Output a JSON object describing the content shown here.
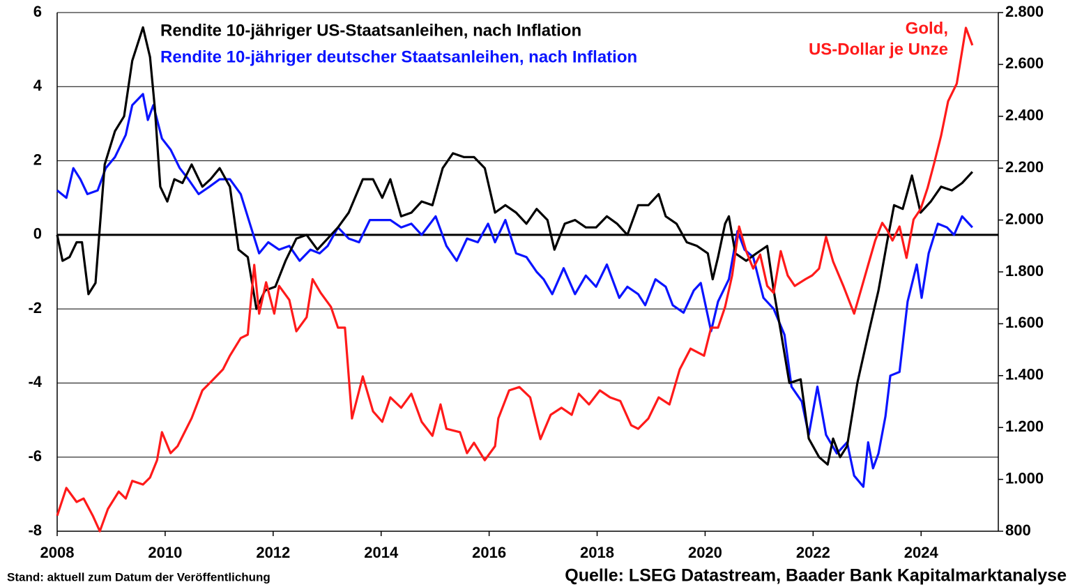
{
  "chart_data": {
    "type": "line",
    "xlim": [
      2008,
      2025.43
    ],
    "xticks": [
      2008,
      2010,
      2012,
      2014,
      2016,
      2018,
      2020,
      2022,
      2024
    ],
    "ylim": [
      -8,
      6
    ],
    "yticks": [
      -8,
      -6,
      -4,
      -2,
      0,
      2,
      4,
      6
    ],
    "y2lim": [
      800,
      2800
    ],
    "y2ticks": [
      800,
      {
        "value": 1000,
        "label": "1.000"
      },
      {
        "value": 1200,
        "label": "1.200"
      },
      {
        "value": 1400,
        "label": "1.400"
      },
      {
        "value": 1600,
        "label": "1.600"
      },
      {
        "value": 1800,
        "label": "1.800"
      },
      {
        "value": 2000,
        "label": "2.000"
      },
      {
        "value": 2200,
        "label": "2.200"
      },
      {
        "value": 2400,
        "label": "2.400"
      },
      {
        "value": 2600,
        "label": "2.600"
      },
      {
        "value": 2800,
        "label": "2.800"
      }
    ],
    "grid": true,
    "footer_left": "Stand: aktuell zum Datum der Veröffentlichung",
    "footer_right": "Quelle: LSEG Datastream, Baader Bank Kapitalmarktanalyse",
    "series": [
      {
        "name": "Rendite 10-jähriger US-Staatsanleihen, nach Inflation",
        "color": "#000000",
        "x": [
          2008.0,
          2008.1,
          2008.23,
          2008.36,
          2008.46,
          2008.58,
          2008.71,
          2008.88,
          2009.07,
          2009.24,
          2009.39,
          2009.59,
          2009.72,
          2009.81,
          2009.91,
          2010.04,
          2010.17,
          2010.32,
          2010.49,
          2010.69,
          2010.84,
          2011.01,
          2011.2,
          2011.36,
          2011.53,
          2011.69,
          2011.85,
          2012.04,
          2012.23,
          2012.43,
          2012.62,
          2012.82,
          2013.01,
          2013.2,
          2013.4,
          2013.66,
          2013.85,
          2014.02,
          2014.17,
          2014.37,
          2014.56,
          2014.75,
          2014.95,
          2015.14,
          2015.33,
          2015.53,
          2015.72,
          2015.92,
          2016.11,
          2016.3,
          2016.5,
          2016.69,
          2016.88,
          2017.08,
          2017.21,
          2017.4,
          2017.59,
          2017.79,
          2017.98,
          2018.18,
          2018.37,
          2018.56,
          2018.76,
          2018.95,
          2019.14,
          2019.27,
          2019.47,
          2019.66,
          2019.85,
          2020.05,
          2020.14,
          2020.24,
          2020.37,
          2020.44,
          2020.56,
          2020.76,
          2020.95,
          2021.15,
          2021.27,
          2021.4,
          2021.56,
          2021.77,
          2021.92,
          2022.11,
          2022.27,
          2022.37,
          2022.5,
          2022.63,
          2022.82,
          2023.02,
          2023.21,
          2023.37,
          2023.5,
          2023.66,
          2023.83,
          2023.99,
          2024.18,
          2024.37,
          2024.57,
          2024.76,
          2024.95
        ],
        "values": [
          0,
          -0.7,
          -0.6,
          -0.2,
          -0.2,
          -1.6,
          -1.3,
          1.9,
          2.8,
          3.2,
          4.7,
          5.6,
          4.8,
          3.4,
          1.3,
          0.9,
          1.5,
          1.4,
          1.9,
          1.3,
          1.5,
          1.8,
          1.3,
          -0.4,
          -0.6,
          -2.0,
          -1.5,
          -1.4,
          -0.7,
          -0.1,
          0.0,
          -0.4,
          -0.1,
          0.2,
          0.6,
          1.5,
          1.5,
          1.0,
          1.5,
          0.5,
          0.6,
          0.9,
          0.8,
          1.8,
          2.2,
          2.1,
          2.1,
          1.8,
          0.6,
          0.8,
          0.6,
          0.3,
          0.7,
          0.4,
          -0.4,
          0.3,
          0.4,
          0.2,
          0.2,
          0.5,
          0.3,
          0.0,
          0.8,
          0.8,
          1.1,
          0.5,
          0.3,
          -0.2,
          -0.3,
          -0.5,
          -1.2,
          -0.6,
          0.3,
          0.5,
          -0.5,
          -0.7,
          -0.5,
          -0.3,
          -1.5,
          -2.6,
          -4.0,
          -3.9,
          -5.5,
          -6.0,
          -6.2,
          -5.5,
          -6.0,
          -5.7,
          -4.0,
          -2.7,
          -1.5,
          -0.2,
          0.8,
          0.7,
          1.6,
          0.6,
          0.9,
          1.3,
          1.2,
          1.4,
          1.7
        ]
      },
      {
        "name": "Rendite 10-jähriger deutscher Staatsanleihen, nach Inflation",
        "color": "#0a14ff",
        "x": [
          2008.0,
          2008.17,
          2008.3,
          2008.43,
          2008.56,
          2008.75,
          2008.9,
          2009.07,
          2009.27,
          2009.39,
          2009.59,
          2009.68,
          2009.78,
          2009.94,
          2010.1,
          2010.27,
          2010.43,
          2010.62,
          2010.82,
          2011.01,
          2011.2,
          2011.4,
          2011.59,
          2011.74,
          2011.91,
          2012.11,
          2012.3,
          2012.49,
          2012.69,
          2012.86,
          2013.01,
          2013.2,
          2013.4,
          2013.59,
          2013.79,
          2013.98,
          2014.17,
          2014.37,
          2014.56,
          2014.75,
          2015.01,
          2015.21,
          2015.4,
          2015.59,
          2015.79,
          2015.98,
          2016.11,
          2016.3,
          2016.5,
          2016.69,
          2016.88,
          2017.01,
          2017.17,
          2017.38,
          2017.59,
          2017.79,
          2017.98,
          2018.18,
          2018.41,
          2018.56,
          2018.76,
          2018.89,
          2019.08,
          2019.27,
          2019.4,
          2019.6,
          2019.79,
          2019.92,
          2020.11,
          2020.24,
          2020.44,
          2020.6,
          2020.73,
          2020.89,
          2021.08,
          2021.27,
          2021.47,
          2021.6,
          2021.79,
          2021.92,
          2022.08,
          2022.24,
          2022.44,
          2022.63,
          2022.76,
          2022.93,
          2023.02,
          2023.11,
          2023.21,
          2023.34,
          2023.43,
          2023.6,
          2023.75,
          2023.92,
          2024.01,
          2024.14,
          2024.31,
          2024.48,
          2024.61,
          2024.76,
          2024.95
        ],
        "values": [
          1.2,
          1.0,
          1.8,
          1.5,
          1.1,
          1.2,
          1.8,
          2.1,
          2.7,
          3.5,
          3.8,
          3.1,
          3.5,
          2.6,
          2.3,
          1.8,
          1.5,
          1.1,
          1.3,
          1.5,
          1.5,
          1.1,
          0.2,
          -0.5,
          -0.2,
          -0.4,
          -0.3,
          -0.7,
          -0.4,
          -0.5,
          -0.3,
          0.2,
          -0.1,
          -0.2,
          0.4,
          0.4,
          0.4,
          0.2,
          0.3,
          0.0,
          0.5,
          -0.3,
          -0.7,
          -0.1,
          -0.2,
          0.3,
          -0.2,
          0.4,
          -0.5,
          -0.6,
          -1.0,
          -1.2,
          -1.6,
          -0.9,
          -1.6,
          -1.1,
          -1.4,
          -0.8,
          -1.7,
          -1.4,
          -1.6,
          -1.9,
          -1.2,
          -1.4,
          -1.9,
          -2.1,
          -1.5,
          -1.3,
          -2.6,
          -1.8,
          -1.2,
          0.1,
          -0.4,
          -0.6,
          -1.7,
          -2.0,
          -2.7,
          -4.1,
          -4.5,
          -5.4,
          -4.1,
          -5.4,
          -5.9,
          -5.6,
          -6.5,
          -6.8,
          -5.6,
          -6.3,
          -5.9,
          -4.9,
          -3.8,
          -3.7,
          -1.8,
          -0.8,
          -1.7,
          -0.5,
          0.3,
          0.2,
          0.0,
          0.5,
          0.2
        ]
      },
      {
        "name": [
          "Gold,",
          "US-Dollar je Unze"
        ],
        "color": "#ff1a1a",
        "axis": "y2",
        "x": [
          2008.0,
          2008.17,
          2008.36,
          2008.49,
          2008.66,
          2008.79,
          2008.94,
          2009.14,
          2009.27,
          2009.39,
          2009.59,
          2009.72,
          2009.85,
          2009.94,
          2010.1,
          2010.23,
          2010.36,
          2010.49,
          2010.69,
          2010.88,
          2011.07,
          2011.2,
          2011.4,
          2011.53,
          2011.65,
          2011.74,
          2011.87,
          2012.02,
          2012.11,
          2012.3,
          2012.43,
          2012.62,
          2012.73,
          2012.88,
          2013.07,
          2013.2,
          2013.33,
          2013.46,
          2013.66,
          2013.85,
          2014.02,
          2014.17,
          2014.37,
          2014.56,
          2014.75,
          2014.95,
          2015.1,
          2015.21,
          2015.46,
          2015.59,
          2015.72,
          2015.92,
          2016.11,
          2016.17,
          2016.37,
          2016.56,
          2016.76,
          2016.95,
          2017.14,
          2017.34,
          2017.53,
          2017.66,
          2017.85,
          2018.05,
          2018.24,
          2018.43,
          2018.63,
          2018.76,
          2018.95,
          2019.14,
          2019.34,
          2019.53,
          2019.73,
          2019.85,
          2019.98,
          2020.11,
          2020.24,
          2020.37,
          2020.5,
          2020.63,
          2020.76,
          2020.89,
          2021.02,
          2021.15,
          2021.27,
          2021.4,
          2021.53,
          2021.66,
          2021.86,
          2021.98,
          2022.11,
          2022.24,
          2022.37,
          2022.56,
          2022.76,
          2022.89,
          2023.02,
          2023.15,
          2023.28,
          2023.37,
          2023.47,
          2023.6,
          2023.73,
          2023.86,
          2023.99,
          2024.12,
          2024.24,
          2024.37,
          2024.5,
          2024.66,
          2024.83,
          2024.95
        ],
        "values": [
          860,
          967,
          913,
          926,
          860,
          800,
          886,
          953,
          926,
          994,
          980,
          1007,
          1074,
          1182,
          1101,
          1128,
          1182,
          1236,
          1343,
          1383,
          1424,
          1477,
          1545,
          1558,
          1827,
          1639,
          1760,
          1639,
          1746,
          1692,
          1571,
          1625,
          1772,
          1719,
          1665,
          1585,
          1585,
          1235,
          1397,
          1262,
          1222,
          1316,
          1276,
          1330,
          1222,
          1168,
          1289,
          1195,
          1182,
          1101,
          1141,
          1074,
          1128,
          1235,
          1343,
          1356,
          1316,
          1155,
          1249,
          1276,
          1249,
          1330,
          1289,
          1343,
          1316,
          1302,
          1209,
          1195,
          1235,
          1316,
          1289,
          1424,
          1504,
          1491,
          1477,
          1585,
          1585,
          1665,
          1786,
          1975,
          1880,
          1813,
          1867,
          1746,
          1719,
          1880,
          1786,
          1746,
          1772,
          1786,
          1813,
          1935,
          1840,
          1746,
          1639,
          1733,
          1827,
          1921,
          1989,
          1962,
          1921,
          1975,
          1854,
          2002,
          2042,
          2123,
          2217,
          2325,
          2458,
          2526,
          2741,
          2674
        ]
      }
    ]
  }
}
